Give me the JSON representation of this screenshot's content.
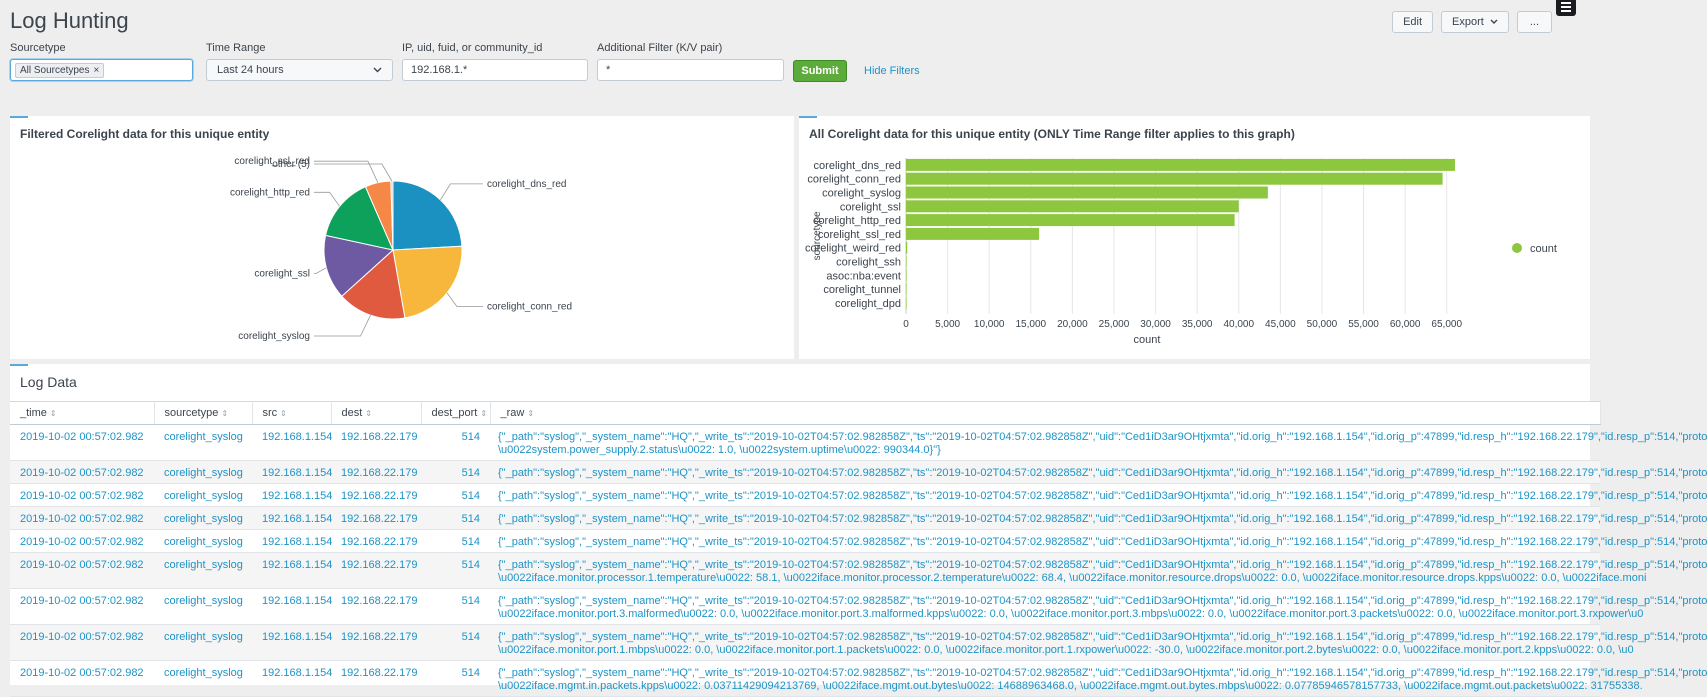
{
  "page": {
    "title": "Log Hunting",
    "actions": {
      "edit": "Edit",
      "export": "Export",
      "more": "..."
    }
  },
  "filters": {
    "sourcetype": {
      "label": "Sourcetype",
      "token": "All Sourcetypes",
      "token_remove": "×"
    },
    "time_range": {
      "label": "Time Range",
      "value": "Last 24 hours"
    },
    "ip": {
      "label": "IP, uid, fuid, or community_id",
      "value": "192.168.1.*"
    },
    "additional": {
      "label": "Additional Filter (K/V pair)",
      "value": "*"
    },
    "submit": "Submit",
    "hide_filters": "Hide Filters"
  },
  "pie_panel": {
    "title": "Filtered Corelight data for this unique entity",
    "chart_data": {
      "type": "pie",
      "slices": [
        {
          "label": "corelight_dns_red",
          "value": 24,
          "color": "#1a91c1"
        },
        {
          "label": "corelight_conn_red",
          "value": 23,
          "color": "#f6b73c"
        },
        {
          "label": "corelight_syslog",
          "value": 16,
          "color": "#e05a3f"
        },
        {
          "label": "corelight_ssl",
          "value": 15,
          "color": "#6d5aa3"
        },
        {
          "label": "corelight_http_red",
          "value": 15,
          "color": "#0ea15c"
        },
        {
          "label": "corelight_ssl_red",
          "value": 6,
          "color": "#f58747"
        },
        {
          "label": "other (5)",
          "value": 0.5,
          "color": "#cccccc"
        }
      ]
    }
  },
  "bar_panel": {
    "title": "All Corelight data for this unique entity (ONLY Time Range filter applies to this graph)",
    "chart_data": {
      "type": "bar",
      "orientation": "horizontal",
      "categories": [
        "corelight_dns_red",
        "corelight_conn_red",
        "corelight_syslog",
        "corelight_ssl",
        "corelight_http_red",
        "corelight_ssl_red",
        "corelight_weird_red",
        "corelight_ssh",
        "asoc:nba:event",
        "corelight_tunnel",
        "corelight_dpd"
      ],
      "series": [
        {
          "name": "count",
          "values": [
            66000,
            64500,
            43500,
            40000,
            39500,
            16000,
            150,
            60,
            40,
            20,
            10
          ],
          "color": "#8dc63f"
        }
      ],
      "xlabel": "count",
      "ylabel": "sourcetype",
      "xlim": [
        0,
        69000
      ],
      "xticks": [
        "0",
        "5,000",
        "10,000",
        "15,000",
        "20,000",
        "25,000",
        "30,000",
        "35,000",
        "40,000",
        "45,000",
        "50,000",
        "55,000",
        "60,000",
        "65,000"
      ],
      "legend": "right",
      "grid": true
    }
  },
  "log_panel": {
    "title": "Log Data",
    "columns": [
      "_time",
      "sourcetype",
      "src",
      "dest",
      "dest_port",
      "_raw"
    ],
    "rows": [
      {
        "time": "2019-10-02 00:57:02.982",
        "sourcetype": "corelight_syslog",
        "src": "192.168.1.154",
        "dest": "192.168.22.179",
        "dest_port": "514",
        "raw": [
          "{\"_path\":\"syslog\",\"_system_name\":\"HQ\",\"_write_ts\":\"2019-10-02T04:57:02.982858Z\",\"ts\":\"2019-10-02T04:57:02.982858Z\",\"uid\":\"Ced1iD3ar9OHtjxmta\",\"id.orig_h\":\"192.168.1.154\",\"id.orig_p\":47899,\"id.resp_h\":\"192.168.22.179\",\"id.resp_p\":514,\"proto",
          "\\u0022system.power_supply.2.status\\u0022: 1.0, \\u0022system.uptime\\u0022: 990344.0}\"}"
        ]
      },
      {
        "time": "2019-10-02 00:57:02.982",
        "sourcetype": "corelight_syslog",
        "src": "192.168.1.154",
        "dest": "192.168.22.179",
        "dest_port": "514",
        "raw": [
          "{\"_path\":\"syslog\",\"_system_name\":\"HQ\",\"_write_ts\":\"2019-10-02T04:57:02.982858Z\",\"ts\":\"2019-10-02T04:57:02.982858Z\",\"uid\":\"Ced1iD3ar9OHtjxmta\",\"id.orig_h\":\"192.168.1.154\",\"id.orig_p\":47899,\"id.resp_h\":\"192.168.22.179\",\"id.resp_p\":514,\"proto"
        ]
      },
      {
        "time": "2019-10-02 00:57:02.982",
        "sourcetype": "corelight_syslog",
        "src": "192.168.1.154",
        "dest": "192.168.22.179",
        "dest_port": "514",
        "raw": [
          "{\"_path\":\"syslog\",\"_system_name\":\"HQ\",\"_write_ts\":\"2019-10-02T04:57:02.982858Z\",\"ts\":\"2019-10-02T04:57:02.982858Z\",\"uid\":\"Ced1iD3ar9OHtjxmta\",\"id.orig_h\":\"192.168.1.154\",\"id.orig_p\":47899,\"id.resp_h\":\"192.168.22.179\",\"id.resp_p\":514,\"proto"
        ]
      },
      {
        "time": "2019-10-02 00:57:02.982",
        "sourcetype": "corelight_syslog",
        "src": "192.168.1.154",
        "dest": "192.168.22.179",
        "dest_port": "514",
        "raw": [
          "{\"_path\":\"syslog\",\"_system_name\":\"HQ\",\"_write_ts\":\"2019-10-02T04:57:02.982858Z\",\"ts\":\"2019-10-02T04:57:02.982858Z\",\"uid\":\"Ced1iD3ar9OHtjxmta\",\"id.orig_h\":\"192.168.1.154\",\"id.orig_p\":47899,\"id.resp_h\":\"192.168.22.179\",\"id.resp_p\":514,\"proto"
        ]
      },
      {
        "time": "2019-10-02 00:57:02.982",
        "sourcetype": "corelight_syslog",
        "src": "192.168.1.154",
        "dest": "192.168.22.179",
        "dest_port": "514",
        "raw": [
          "{\"_path\":\"syslog\",\"_system_name\":\"HQ\",\"_write_ts\":\"2019-10-02T04:57:02.982858Z\",\"ts\":\"2019-10-02T04:57:02.982858Z\",\"uid\":\"Ced1iD3ar9OHtjxmta\",\"id.orig_h\":\"192.168.1.154\",\"id.orig_p\":47899,\"id.resp_h\":\"192.168.22.179\",\"id.resp_p\":514,\"proto"
        ]
      },
      {
        "time": "2019-10-02 00:57:02.982",
        "sourcetype": "corelight_syslog",
        "src": "192.168.1.154",
        "dest": "192.168.22.179",
        "dest_port": "514",
        "raw": [
          "{\"_path\":\"syslog\",\"_system_name\":\"HQ\",\"_write_ts\":\"2019-10-02T04:57:02.982858Z\",\"ts\":\"2019-10-02T04:57:02.982858Z\",\"uid\":\"Ced1iD3ar9OHtjxmta\",\"id.orig_h\":\"192.168.1.154\",\"id.orig_p\":47899,\"id.resp_h\":\"192.168.22.179\",\"id.resp_p\":514,\"proto",
          "\\u0022iface.monitor.processor.1.temperature\\u0022: 58.1, \\u0022iface.monitor.processor.2.temperature\\u0022: 68.4, \\u0022iface.monitor.resource.drops\\u0022: 0.0, \\u0022iface.monitor.resource.drops.kpps\\u0022: 0.0, \\u0022iface.moni"
        ]
      },
      {
        "time": "2019-10-02 00:57:02.982",
        "sourcetype": "corelight_syslog",
        "src": "192.168.1.154",
        "dest": "192.168.22.179",
        "dest_port": "514",
        "raw": [
          "{\"_path\":\"syslog\",\"_system_name\":\"HQ\",\"_write_ts\":\"2019-10-02T04:57:02.982858Z\",\"ts\":\"2019-10-02T04:57:02.982858Z\",\"uid\":\"Ced1iD3ar9OHtjxmta\",\"id.orig_h\":\"192.168.1.154\",\"id.orig_p\":47899,\"id.resp_h\":\"192.168.22.179\",\"id.resp_p\":514,\"proto",
          "\\u0022iface.monitor.port.3.malformed\\u0022: 0.0, \\u0022iface.monitor.port.3.malformed.kpps\\u0022: 0.0, \\u0022iface.monitor.port.3.mbps\\u0022: 0.0, \\u0022iface.monitor.port.3.packets\\u0022: 0.0, \\u0022iface.monitor.port.3.rxpower\\u0"
        ]
      },
      {
        "time": "2019-10-02 00:57:02.982",
        "sourcetype": "corelight_syslog",
        "src": "192.168.1.154",
        "dest": "192.168.22.179",
        "dest_port": "514",
        "raw": [
          "{\"_path\":\"syslog\",\"_system_name\":\"HQ\",\"_write_ts\":\"2019-10-02T04:57:02.982858Z\",\"ts\":\"2019-10-02T04:57:02.982858Z\",\"uid\":\"Ced1iD3ar9OHtjxmta\",\"id.orig_h\":\"192.168.1.154\",\"id.orig_p\":47899,\"id.resp_h\":\"192.168.22.179\",\"id.resp_p\":514,\"proto",
          "\\u0022iface.monitor.port.1.mbps\\u0022: 0.0, \\u0022iface.monitor.port.1.packets\\u0022: 0.0, \\u0022iface.monitor.port.1.rxpower\\u0022: -30.0, \\u0022iface.monitor.port.2.bytes\\u0022: 0.0, \\u0022iface.monitor.port.2.kpps\\u0022: 0.0, \\u0"
        ]
      },
      {
        "time": "2019-10-02 00:57:02.982",
        "sourcetype": "corelight_syslog",
        "src": "192.168.1.154",
        "dest": "192.168.22.179",
        "dest_port": "514",
        "raw": [
          "{\"_path\":\"syslog\",\"_system_name\":\"HQ\",\"_write_ts\":\"2019-10-02T04:57:02.982858Z\",\"ts\":\"2019-10-02T04:57:02.982858Z\",\"uid\":\"Ced1iD3ar9OHtjxmta\",\"id.orig_h\":\"192.168.1.154\",\"id.orig_p\":47899,\"id.resp_h\":\"192.168.22.179\",\"id.resp_p\":514,\"proto",
          "\\u0022iface.mgmt.in.packets.kpps\\u0022: 0.03711429094213769, \\u0022iface.mgmt.out.bytes\\u0022: 14688963468.0, \\u0022iface.mgmt.out.bytes.mbps\\u0022: 0.07785946578157733, \\u0022iface.mgmt.out.packets\\u0022: 31755338."
        ]
      }
    ]
  }
}
